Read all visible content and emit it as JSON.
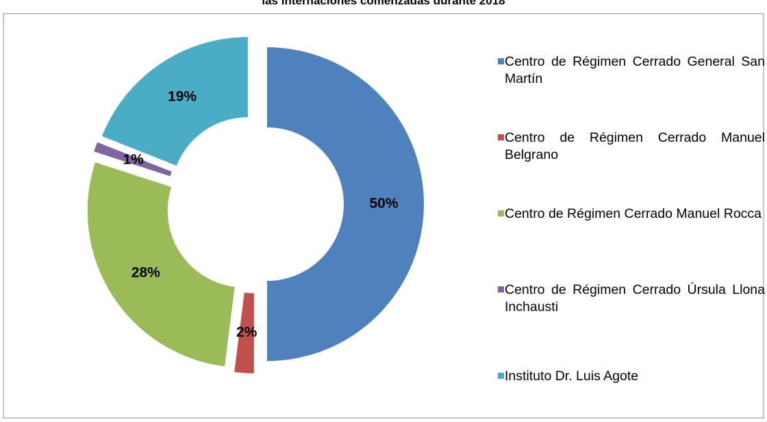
{
  "chart_data": {
    "type": "donut",
    "title": "las internaciones comenzadas durante 2018",
    "categories": [
      "Centro de Régimen Cerrado General San Martín",
      "Centro de Régimen Cerrado Manuel Belgrano",
      "Centro de Régimen Cerrado Manuel Rocca",
      "Centro de Régimen Cerrado Úrsula Llona Inchausti",
      "Instituto Dr. Luis Agote"
    ],
    "values": [
      50,
      2,
      28,
      1,
      19
    ],
    "value_labels": [
      "50%",
      "2%",
      "28%",
      "1%",
      "19%"
    ],
    "colors": [
      "#4f81bd",
      "#c0504d",
      "#9bbb59",
      "#8064a2",
      "#4bacc6"
    ],
    "legend": "right"
  }
}
